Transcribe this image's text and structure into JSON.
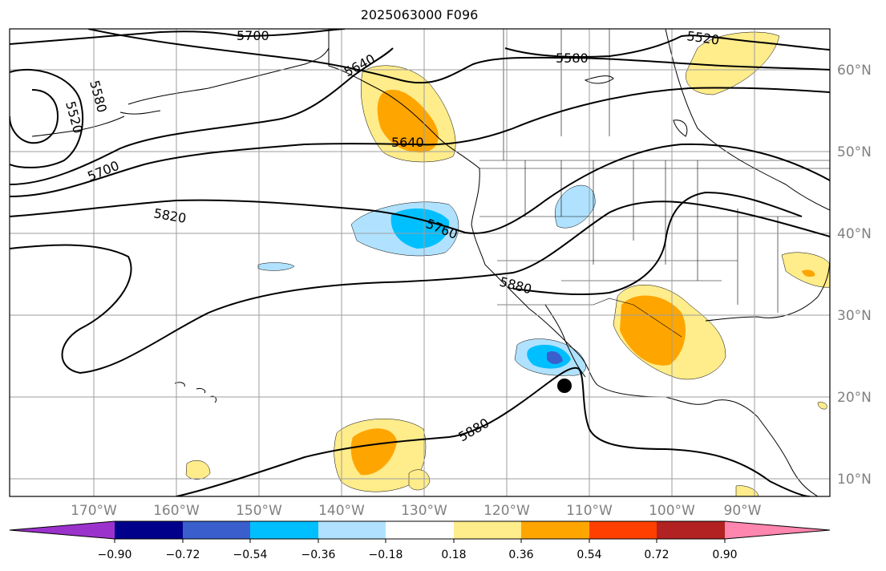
{
  "map": {
    "title": "2025063000 F096",
    "lat_labels": [
      "60°N",
      "50°N",
      "40°N",
      "30°N",
      "20°N",
      "10°N"
    ],
    "lon_labels": [
      "170°W",
      "160°W",
      "150°W",
      "140°W",
      "130°W",
      "120°W",
      "110°W",
      "100°W",
      "90°W"
    ],
    "contour_labels": [
      "5700",
      "5520",
      "5580",
      "5640",
      "5580",
      "5520",
      "5700",
      "5640",
      "5820",
      "5760",
      "5880",
      "5880"
    ],
    "colorbar": {
      "ticks": [
        "−0.90",
        "−0.72",
        "−0.54",
        "−0.36",
        "−0.18",
        "0.18",
        "0.36",
        "0.54",
        "0.72",
        "0.90"
      ],
      "colors": [
        "#9b32cc",
        "#00008b",
        "#3a5fcd",
        "#00bfff",
        "#b0e2ff",
        "#ffffff",
        "#ffec8b",
        "#ffa500",
        "#ff3f00",
        "#b22222",
        "#ff86ae"
      ]
    },
    "colors": {
      "negative_light": "#b0e2ff",
      "negative_mid": "#00bfff",
      "negative_dark": "#3a5fcd",
      "positive_light": "#ffec8b",
      "positive_mid": "#ffa500",
      "positive_dark": "#ff3f00"
    }
  }
}
